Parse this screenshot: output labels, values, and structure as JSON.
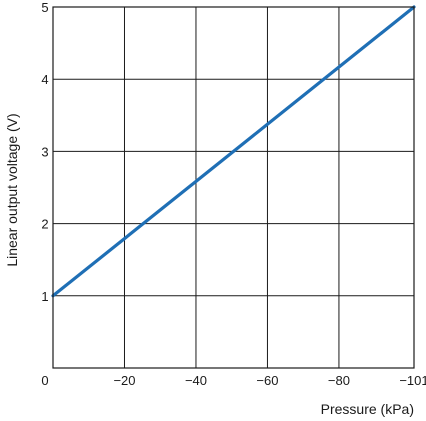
{
  "chart_data": {
    "type": "line",
    "title": "",
    "xlabel": "Pressure (kPa)",
    "ylabel": "Linear output voltage (V)",
    "xlim": [
      0,
      -101
    ],
    "ylim": [
      0,
      5
    ],
    "grid": true,
    "x_ticks": [
      {
        "value": 0,
        "label": "0"
      },
      {
        "value": -20,
        "label": "−20"
      },
      {
        "value": -40,
        "label": "−40"
      },
      {
        "value": -60,
        "label": "−60"
      },
      {
        "value": -80,
        "label": "−80"
      },
      {
        "value": -101,
        "label": "−101"
      }
    ],
    "y_ticks": [
      {
        "value": 1,
        "label": "1"
      },
      {
        "value": 2,
        "label": "2"
      },
      {
        "value": 3,
        "label": "3"
      },
      {
        "value": 4,
        "label": "4"
      },
      {
        "value": 5,
        "label": "5"
      }
    ],
    "series": [
      {
        "color": "#1f6fb5",
        "points": [
          {
            "x": 0,
            "y": 1
          },
          {
            "x": -101,
            "y": 5
          }
        ]
      }
    ]
  }
}
